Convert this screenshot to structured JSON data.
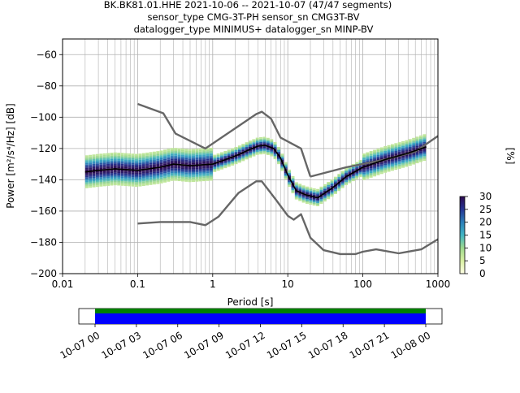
{
  "header": {
    "line1": "BK.BK81.01.HHE   2021-10-06 -- 2021-10-07  (47/47 segments)",
    "line2": "sensor_type CMG-3T-PH sensor_sn CMG3T-BV",
    "line3": "datalogger_type MINIMUS+ datalogger_sn MINP-BV"
  },
  "chart_data": [
    {
      "type": "heatmap",
      "xlabel": "Period [s]",
      "ylabel": "Power [m²/s⁴/Hz] [dB]",
      "x_scale": "log",
      "xlim": [
        0.01,
        1000
      ],
      "ylim": [
        -200,
        -50
      ],
      "x_ticks": [
        {
          "v": 0.01,
          "label": "0.01"
        },
        {
          "v": 0.1,
          "label": "0.1"
        },
        {
          "v": 1,
          "label": "1"
        },
        {
          "v": 10,
          "label": "10"
        },
        {
          "v": 100,
          "label": "100"
        },
        {
          "v": 1000,
          "label": "1000"
        }
      ],
      "y_ticks": [
        -60,
        -80,
        -100,
        -120,
        -140,
        -160,
        -180,
        -200
      ],
      "grid": true,
      "colorbar": {
        "label": "[%]",
        "ticks": [
          0,
          5,
          10,
          15,
          20,
          25,
          30
        ],
        "range": [
          0,
          30
        ],
        "colormap": [
          "#ffffe5",
          "#d9f0a3",
          "#9ed98e",
          "#41b6c4",
          "#2c7fb8",
          "#253494",
          "#2d0a4e"
        ]
      },
      "series": [
        {
          "name": "",
          "color": "#666666",
          "x": [
            0.1,
            0.22,
            0.32,
            0.8,
            3.8,
            4.5,
            6.0,
            8.0,
            15.0,
            20.0
          ],
          "y": [
            -91.5,
            -97.5,
            -110.5,
            -120.0,
            -98.0,
            -96.5,
            -101.0,
            -113.0,
            -120.0,
            -138.0
          ]
        },
        {
          "name": "",
          "color": "#666666",
          "x": [
            20.0,
            60.0,
            200.0,
            500.0,
            1000.0
          ],
          "y": [
            -138.0,
            -132.0,
            -127.0,
            -122.0,
            -112.0
          ]
        },
        {
          "name": "",
          "color": "#666666",
          "x": [
            0.1,
            0.2,
            0.5,
            0.8,
            1.2,
            2.2,
            3.8,
            4.5,
            7.0,
            10.0,
            12.0,
            15.0,
            20.0,
            30.0,
            50.0,
            80.0,
            100.0,
            150.0,
            300.0,
            600.0,
            1000.0
          ],
          "y": [
            -168.0,
            -167.0,
            -167.0,
            -169.0,
            -163.5,
            -148.5,
            -141.0,
            -141.0,
            -153.0,
            -163.0,
            -165.5,
            -162.0,
            -177.0,
            -185.0,
            -187.5,
            -187.5,
            -186.0,
            -184.5,
            -187.0,
            -184.5,
            -178.0
          ]
        },
        {
          "name": "",
          "color": "#000000",
          "x": [
            0.02,
            0.03,
            0.05,
            0.1,
            0.2,
            0.3,
            0.5,
            1.0,
            1.5,
            2.2,
            3.0,
            4.0,
            5.0,
            6.5,
            8.0,
            10.0,
            13.0,
            17.0,
            25.0,
            30.0,
            40.0,
            60.0,
            100.0,
            200.0,
            400.0,
            700.0
          ],
          "y": [
            -135.0,
            -134.0,
            -133.0,
            -134.0,
            -132.0,
            -130.0,
            -131.0,
            -130.0,
            -127.0,
            -124.0,
            -121.0,
            -118.5,
            -118.0,
            -120.0,
            -126.0,
            -137.0,
            -147.0,
            -149.5,
            -151.5,
            -149.0,
            -145.0,
            -138.0,
            -132.0,
            -127.0,
            -123.0,
            -119.0
          ]
        }
      ]
    },
    {
      "type": "bar",
      "x_ticks": [
        "10-07 00",
        "10-07 03",
        "10-07 06",
        "10-07 09",
        "10-07 12",
        "10-07 15",
        "10-07 18",
        "10-07 21",
        "10-08 00"
      ],
      "colors": {
        "top": "#008000",
        "bottom": "#0000ff"
      },
      "start_hour": 0,
      "end_hour": 24
    }
  ]
}
